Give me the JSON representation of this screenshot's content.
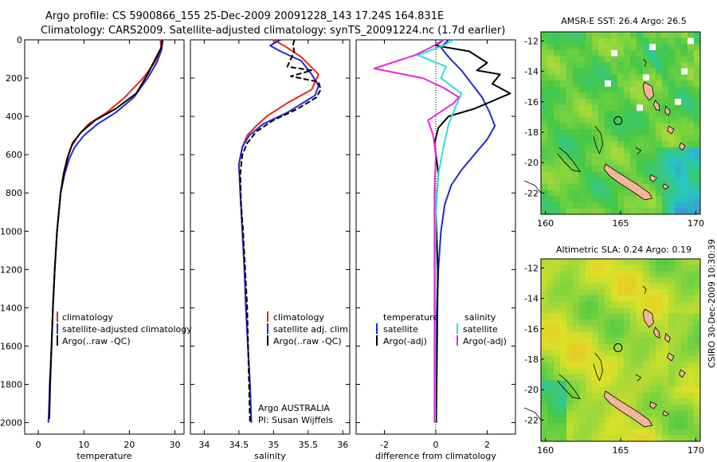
{
  "header": {
    "title_line1": "Argo profile: CS 5900866_155 25-Dec-2009 20091228_143 17.24S 164.831E",
    "title_line2": "Climatology: CARS2009. Satellite-adjusted climatology: synTS_20091224.nc (1.7d earlier)"
  },
  "credit": "CSIRO 30-Dec-2009 10:30:39",
  "annotation": {
    "line1": "Argo AUSTRALIA",
    "line2": "PI: Susan Wijffels"
  },
  "colors": {
    "climatology": "#e8261c",
    "satellite": "#1f2ad6",
    "argo": "#000000",
    "argo_adj": "#e828d8",
    "sal_satellite": "#30dcdc"
  },
  "chart_data": [
    {
      "id": "temperature",
      "type": "line",
      "xlabel": "temperature",
      "ylabel": "",
      "xlim": [
        -3,
        32
      ],
      "ylim": [
        2060,
        0
      ],
      "xticks": [
        0,
        10,
        20,
        30
      ],
      "yticks": [
        0,
        200,
        400,
        600,
        800,
        1000,
        1200,
        1400,
        1600,
        1800,
        2000
      ],
      "legend": [
        "climatology",
        "satellite-adjusted climatology",
        "Argo(..raw -QC)"
      ],
      "series": [
        {
          "name": "climatology",
          "color": "#e8261c",
          "x": [
            26.8,
            27.0,
            25.5,
            23.0,
            19.0,
            15.0,
            11.0,
            8.8,
            7.2,
            6.3,
            5.5,
            4.9,
            4.1,
            3.6,
            3.2,
            2.9,
            2.7,
            2.5,
            2.4,
            2.3,
            2.2
          ],
          "y": [
            0,
            50,
            120,
            200,
            300,
            380,
            440,
            500,
            560,
            620,
            700,
            800,
            1000,
            1200,
            1400,
            1600,
            1700,
            1800,
            1900,
            1950,
            2000
          ]
        },
        {
          "name": "satellite-adjusted climatology",
          "color": "#1f2ad6",
          "x": [
            27.3,
            27.1,
            26.0,
            24.0,
            21.0,
            17.0,
            13.0,
            10.0,
            8.0,
            6.8,
            5.8,
            4.9,
            4.1,
            3.6,
            3.2,
            2.9,
            2.5,
            2.3,
            2.2
          ],
          "y": [
            0,
            50,
            120,
            200,
            300,
            380,
            440,
            500,
            560,
            620,
            700,
            800,
            1000,
            1200,
            1400,
            1600,
            1800,
            1950,
            2000
          ]
        },
        {
          "name": "Argo(..raw -QC)",
          "color": "#000000",
          "x": [
            27.2,
            27.0,
            25.7,
            24.0,
            21.5,
            17.0,
            12.5,
            9.5,
            7.5,
            6.5,
            5.6,
            4.9,
            4.1,
            3.6,
            3.2,
            2.9,
            2.6,
            2.4
          ],
          "y": [
            0,
            40,
            100,
            180,
            280,
            360,
            420,
            480,
            540,
            610,
            700,
            800,
            1000,
            1200,
            1400,
            1600,
            1800,
            1980
          ]
        }
      ]
    },
    {
      "id": "salinity",
      "type": "line",
      "xlabel": "salinity",
      "ylabel": "",
      "xlim": [
        33.8,
        36.1
      ],
      "ylim": [
        2060,
        0
      ],
      "xticks": [
        34,
        34.5,
        35,
        35.5,
        36
      ],
      "yticks": [
        0,
        200,
        400,
        600,
        800,
        1000,
        1200,
        1400,
        1600,
        1800,
        2000
      ],
      "legend": [
        "climatology",
        "satellite adj. clim.",
        "Argo(..raw -QC)"
      ],
      "series": [
        {
          "name": "climatology",
          "color": "#e8261c",
          "x": [
            35.0,
            35.15,
            35.4,
            35.65,
            35.55,
            35.2,
            34.9,
            34.75,
            34.62,
            34.55,
            34.5,
            34.52,
            34.55,
            34.58,
            34.6,
            34.63,
            34.66,
            34.68
          ],
          "y": [
            0,
            30,
            90,
            180,
            260,
            330,
            400,
            450,
            500,
            560,
            650,
            800,
            1000,
            1200,
            1400,
            1600,
            1800,
            2000
          ]
        },
        {
          "name": "satellite adj. clim.",
          "color": "#1f2ad6",
          "x": [
            35.1,
            34.95,
            35.1,
            35.4,
            35.55,
            35.65,
            35.6,
            35.2,
            34.85,
            34.65,
            34.55,
            34.5,
            34.52,
            34.55,
            34.58,
            34.6,
            34.63,
            34.66,
            34.68
          ],
          "y": [
            0,
            30,
            60,
            110,
            180,
            240,
            290,
            380,
            440,
            500,
            560,
            650,
            800,
            1000,
            1200,
            1400,
            1600,
            1800,
            2000
          ]
        },
        {
          "name": "Argo(..raw -QC)",
          "color": "#000000",
          "x": [
            35.3,
            35.28,
            35.3,
            35.25,
            35.2,
            35.55,
            35.25,
            35.65,
            35.68,
            35.62,
            35.35,
            35.0,
            34.75,
            34.62,
            34.55,
            34.52,
            34.53,
            34.56,
            34.59,
            34.62,
            34.64,
            34.66
          ],
          "y": [
            0,
            30,
            60,
            100,
            140,
            160,
            190,
            220,
            260,
            300,
            360,
            420,
            480,
            540,
            600,
            700,
            850,
            1000,
            1200,
            1400,
            1700,
            2000
          ]
        }
      ]
    },
    {
      "id": "difference",
      "type": "line",
      "xlabel": "difference from climatology",
      "ylabel": "",
      "xlim": [
        -3.1,
        3.1
      ],
      "ylim": [
        2060,
        0
      ],
      "xticks": [
        -2,
        0,
        2
      ],
      "yticks": [
        0,
        200,
        400,
        600,
        800,
        1000,
        1200,
        1400,
        1600,
        1800,
        2000
      ],
      "legend": {
        "temperature_header": "temperature",
        "salinity_header": "salinity",
        "temperature": [
          "satellite",
          "Argo(-adj)"
        ],
        "salinity": [
          "satellite",
          "Argo(-adj)"
        ]
      },
      "zero_line": 0,
      "series": [
        {
          "name": "temperature satellite",
          "color": "#1f2ad6",
          "x": [
            0.5,
            0.2,
            0.5,
            1.0,
            1.4,
            1.8,
            2.1,
            2.3,
            2.0,
            1.5,
            1.0,
            0.6,
            0.35,
            0.2,
            0.1,
            0.05,
            0.03,
            0.02
          ],
          "y": [
            0,
            40,
            90,
            160,
            230,
            300,
            380,
            450,
            520,
            600,
            680,
            760,
            860,
            1000,
            1200,
            1400,
            1700,
            2000
          ]
        },
        {
          "name": "temperature Argo(-adj)",
          "color": "#000000",
          "x": [
            0.3,
            0.0,
            1.3,
            2.0,
            1.6,
            2.5,
            2.2,
            2.9,
            1.5,
            0.5,
            0.1,
            -0.05,
            0.1,
            0.0,
            0.08,
            0.05,
            0.02
          ],
          "y": [
            0,
            30,
            60,
            120,
            160,
            180,
            230,
            280,
            360,
            400,
            460,
            540,
            700,
            900,
            1200,
            1600,
            2000
          ]
        },
        {
          "name": "salinity satellite",
          "color": "#30dcdc",
          "x": [
            0.7,
            0.3,
            -0.7,
            0.4,
            0.2,
            1.0,
            0.8,
            0.5,
            0.3,
            0.1,
            0.0,
            -0.02,
            -0.02
          ],
          "y": [
            0,
            30,
            80,
            140,
            200,
            280,
            340,
            440,
            560,
            700,
            900,
            1300,
            2000
          ]
        },
        {
          "name": "salinity Argo(-adj)",
          "color": "#e828d8",
          "x": [
            0.3,
            -0.2,
            -0.8,
            -2.4,
            -0.5,
            0.3,
            0.9,
            0.7,
            -0.3,
            -0.1,
            0.0,
            -0.05,
            -0.05,
            -0.05
          ],
          "y": [
            0,
            40,
            80,
            150,
            200,
            250,
            300,
            330,
            420,
            500,
            600,
            800,
            1200,
            2000
          ]
        }
      ]
    },
    {
      "id": "sst_map",
      "type": "heatmap",
      "title": "AMSR-E SST: 26.4 Argo: 26.5",
      "xlim": [
        159.7,
        170.3
      ],
      "ylim": [
        -23.4,
        -11.4
      ],
      "xticks": [
        160,
        165,
        170
      ],
      "yticks": [
        -12,
        -14,
        -16,
        -18,
        -20,
        -22
      ],
      "marker": {
        "lon": 164.831,
        "lat": -17.24
      }
    },
    {
      "id": "sla_map",
      "type": "heatmap",
      "title": "Altimetric SLA: 0.24 Argo: 0.19",
      "xlim": [
        159.7,
        170.3
      ],
      "ylim": [
        -23.4,
        -11.4
      ],
      "xticks": [
        160,
        165,
        170
      ],
      "yticks": [
        -12,
        -14,
        -16,
        -18,
        -20,
        -22
      ],
      "marker": {
        "lon": 164.831,
        "lat": -17.24
      }
    }
  ]
}
